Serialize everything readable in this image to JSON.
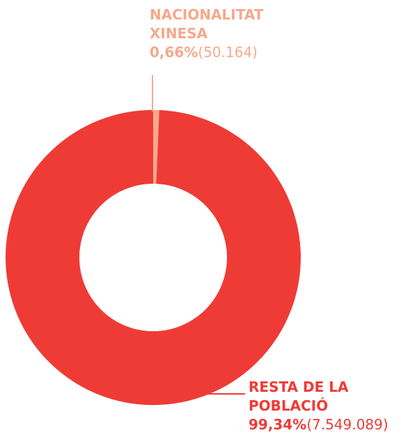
{
  "chart_data": {
    "type": "donut",
    "categories": [
      "NACIONALITAT XINESA",
      "RESTA DE LA POBLACIÓ"
    ],
    "values": [
      0.66,
      99.34
    ],
    "value_labels": [
      "0,66%",
      "99,34%"
    ],
    "counts": [
      50164,
      7549089
    ],
    "count_labels": [
      "(50.164)",
      "(7.549.089)"
    ],
    "colors": [
      "#f5a98c",
      "#ef3b36"
    ]
  }
}
